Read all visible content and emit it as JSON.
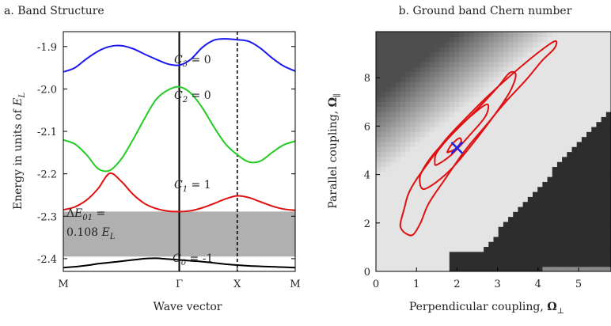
{
  "chart_data": [
    {
      "type": "line",
      "title": "a. Band Structure",
      "xlabel": "Wave vector",
      "ylabel": "Energy in units of E_L",
      "ylabel_parts": {
        "text": "Energy in units of ",
        "var": "E",
        "sub": "L"
      },
      "x_ticks": [
        "M",
        "Γ",
        "X",
        "M"
      ],
      "y_ticks": [
        "-1.9",
        "-2.0",
        "-2.1",
        "-2.2",
        "-2.3",
        "-2.4"
      ],
      "ylim": [
        -2.43,
        -1.865
      ],
      "x": [
        0,
        0.05,
        0.1,
        0.15,
        0.2,
        0.25,
        0.3,
        0.35,
        0.4,
        0.45,
        0.5,
        0.55,
        0.6,
        0.65,
        0.7,
        0.75,
        0.8,
        0.85,
        0.9,
        0.95,
        1.0
      ],
      "series": [
        {
          "band": "C0",
          "color": "#000000",
          "values": [
            -2.421,
            -2.419,
            -2.416,
            -2.412,
            -2.409,
            -2.406,
            -2.403,
            -2.4,
            -2.399,
            -2.401,
            -2.403,
            -2.405,
            -2.407,
            -2.41,
            -2.413,
            -2.415,
            -2.417,
            -2.418,
            -2.419,
            -2.42,
            -2.421
          ]
        },
        {
          "band": "C1",
          "color": "#e01010",
          "values": [
            -2.285,
            -2.278,
            -2.262,
            -2.235,
            -2.199,
            -2.218,
            -2.248,
            -2.27,
            -2.282,
            -2.288,
            -2.289,
            -2.287,
            -2.28,
            -2.27,
            -2.259,
            -2.252,
            -2.256,
            -2.266,
            -2.276,
            -2.283,
            -2.286
          ]
        },
        {
          "band": "C2",
          "color": "#22cc22",
          "values": [
            -2.12,
            -2.13,
            -2.155,
            -2.188,
            -2.192,
            -2.165,
            -2.12,
            -2.07,
            -2.025,
            -2.003,
            -1.995,
            -2.01,
            -2.045,
            -2.09,
            -2.13,
            -2.155,
            -2.172,
            -2.17,
            -2.15,
            -2.132,
            -2.123
          ]
        },
        {
          "band": "C3",
          "color": "#1a1aee",
          "values": [
            -1.96,
            -1.95,
            -1.929,
            -1.911,
            -1.9,
            -1.898,
            -1.905,
            -1.918,
            -1.93,
            -1.941,
            -1.944,
            -1.93,
            -1.902,
            -1.885,
            -1.882,
            -1.884,
            -1.888,
            -1.904,
            -1.927,
            -1.946,
            -1.958
          ]
        }
      ],
      "gap_band": {
        "from": -2.395,
        "to": -2.289,
        "color": "#b0b0b0"
      },
      "vlines": [
        {
          "x": 0.5,
          "style": "solid"
        },
        {
          "x": 0.75,
          "style": "dashed"
        }
      ],
      "annotations": {
        "c3": {
          "var": "C",
          "sub": "3",
          "rest": " = 0"
        },
        "c2": {
          "var": "C",
          "sub": "2",
          "rest": " = 0"
        },
        "c1": {
          "var": "C",
          "sub": "1",
          "rest": " = 1"
        },
        "c0": {
          "var": "C",
          "sub": "0",
          "rest": " = -1"
        },
        "gap_line1": {
          "pre": "Δ",
          "var": "E",
          "sub": "01",
          "rest": " ="
        },
        "gap_line2": {
          "pre": "0.108 ",
          "var": "E",
          "sub": "L",
          "rest": ""
        }
      }
    },
    {
      "type": "heatmap",
      "title": "b. Ground band Chern number",
      "xlabel": "Perpendicular coupling, Ω⊥",
      "xlabel_parts": {
        "text": "Perpendicular coupling, ",
        "sym": "Ω",
        "sub": "⊥"
      },
      "ylabel": "Parallel coupling, Ω∥",
      "ylabel_parts": {
        "text": "Parallel coupling, ",
        "sym": "Ω",
        "sub": "∥"
      },
      "x_ticks": [
        "0",
        "1",
        "2",
        "3",
        "4",
        "5"
      ],
      "y_ticks": [
        "0",
        "2",
        "4",
        "6",
        "8"
      ],
      "xlim": [
        0,
        5.8
      ],
      "ylim": [
        0,
        9.9
      ],
      "grid_cells": 48,
      "colors": {
        "light": "#e4e4e4",
        "dark": "#2d2d2d",
        "contour": "#e01010",
        "marker": "#2222ee"
      },
      "contours": [
        [
          [
            0.7,
            1.6
          ],
          [
            0.6,
            1.9
          ],
          [
            0.7,
            2.6
          ],
          [
            0.8,
            3.2
          ],
          [
            1.0,
            3.8
          ],
          [
            1.3,
            4.5
          ],
          [
            1.7,
            5.4
          ],
          [
            2.2,
            6.3
          ],
          [
            2.8,
            7.3
          ],
          [
            3.4,
            8.2
          ],
          [
            3.9,
            8.9
          ],
          [
            4.3,
            9.4
          ],
          [
            4.45,
            9.5
          ],
          [
            4.4,
            9.2
          ],
          [
            4.1,
            8.7
          ],
          [
            3.7,
            7.9
          ],
          [
            3.2,
            7.0
          ],
          [
            2.7,
            6.0
          ],
          [
            2.2,
            5.0
          ],
          [
            1.7,
            3.8
          ],
          [
            1.3,
            2.8
          ],
          [
            1.1,
            2.0
          ],
          [
            0.9,
            1.5
          ],
          [
            0.7,
            1.6
          ]
        ],
        [
          [
            1.1,
            3.5
          ],
          [
            1.1,
            4.0
          ],
          [
            1.4,
            4.8
          ],
          [
            1.9,
            5.7
          ],
          [
            2.5,
            6.7
          ],
          [
            3.0,
            7.6
          ],
          [
            3.3,
            8.2
          ],
          [
            3.45,
            8.1
          ],
          [
            3.3,
            7.4
          ],
          [
            2.9,
            6.4
          ],
          [
            2.4,
            5.3
          ],
          [
            1.9,
            4.3
          ],
          [
            1.5,
            3.7
          ],
          [
            1.2,
            3.4
          ],
          [
            1.1,
            3.5
          ]
        ],
        [
          [
            1.45,
            4.5
          ],
          [
            1.5,
            4.9
          ],
          [
            1.9,
            5.7
          ],
          [
            2.4,
            6.5
          ],
          [
            2.75,
            6.9
          ],
          [
            2.7,
            6.4
          ],
          [
            2.3,
            5.6
          ],
          [
            1.85,
            4.8
          ],
          [
            1.5,
            4.4
          ],
          [
            1.45,
            4.5
          ]
        ],
        [
          [
            1.75,
            4.9
          ],
          [
            1.85,
            5.2
          ],
          [
            2.05,
            5.5
          ],
          [
            2.1,
            5.35
          ],
          [
            1.95,
            5.05
          ],
          [
            1.75,
            4.9
          ]
        ]
      ],
      "marker": {
        "x": 2.0,
        "y": 5.1,
        "shape": "x"
      }
    }
  ]
}
